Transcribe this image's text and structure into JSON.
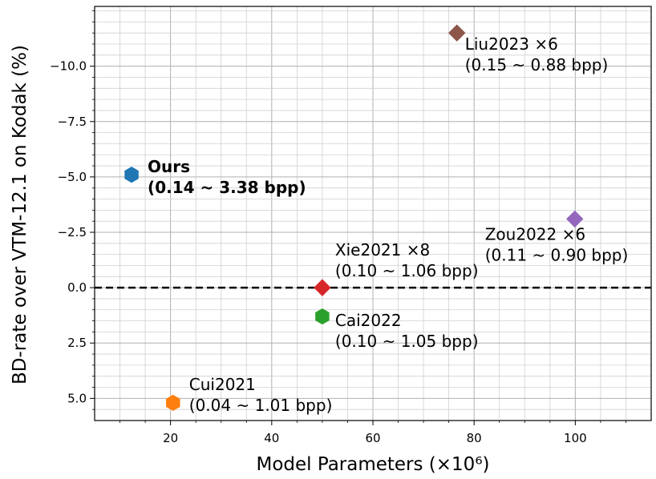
{
  "chart_data": {
    "type": "scatter",
    "title": "",
    "xlabel": "Model Parameters (×10⁶)",
    "ylabel": "BD-rate over VTM-12.1 on Kodak (%)",
    "xlim": [
      5,
      115
    ],
    "ylim": [
      6,
      -12.7
    ],
    "y_inverted": true,
    "grid": true,
    "x_ticks": [
      20,
      40,
      60,
      80,
      100
    ],
    "x_tick_labels": [
      "20",
      "40",
      "60",
      "80",
      "100"
    ],
    "y_ticks": [
      -10.0,
      -7.5,
      -5.0,
      -2.5,
      0.0,
      2.5,
      5.0
    ],
    "y_tick_labels": [
      "−10.0",
      "−7.5",
      "−5.0",
      "−2.5",
      "0.0",
      "2.5",
      "5.0"
    ],
    "reference_line": {
      "y": 0.0,
      "style": "dashed",
      "color": "#000000"
    },
    "points": [
      {
        "name": "Ours",
        "x": 12.3,
        "y": -5.1,
        "marker": "hexagon",
        "color": "#1f77b4",
        "bold": true,
        "label_lines": [
          "Ours",
          "(0.14 ~ 3.38 bpp)"
        ]
      },
      {
        "name": "Liu2023",
        "x": 76.6,
        "y": -11.5,
        "marker": "diamond",
        "color": "#8c564b",
        "bold": false,
        "label_lines": [
          "Liu2023 ×6",
          "(0.15 ~ 0.88 bpp)"
        ]
      },
      {
        "name": "Zou2022",
        "x": 99.9,
        "y": -3.1,
        "marker": "diamond",
        "color": "#9467bd",
        "bold": false,
        "label_lines": [
          "Zou2022 ×6",
          "(0.11 ~ 0.90 bpp)"
        ]
      },
      {
        "name": "Xie2021",
        "x": 50.0,
        "y": 0.0,
        "marker": "diamond",
        "color": "#d62728",
        "bold": false,
        "label_lines": [
          "Xie2021 ×8",
          "(0.10 ~ 1.06 bpp)"
        ]
      },
      {
        "name": "Cai2022",
        "x": 50.0,
        "y": 1.3,
        "marker": "hexagon",
        "color": "#2ca02c",
        "bold": false,
        "label_lines": [
          "Cai2022",
          "(0.10 ~ 1.05 bpp)"
        ]
      },
      {
        "name": "Cui2021",
        "x": 20.5,
        "y": 5.2,
        "marker": "hexagon",
        "color": "#ff7f0e",
        "bold": false,
        "label_lines": [
          "Cui2021",
          "(0.04 ~ 1.01 bpp)"
        ]
      }
    ]
  }
}
